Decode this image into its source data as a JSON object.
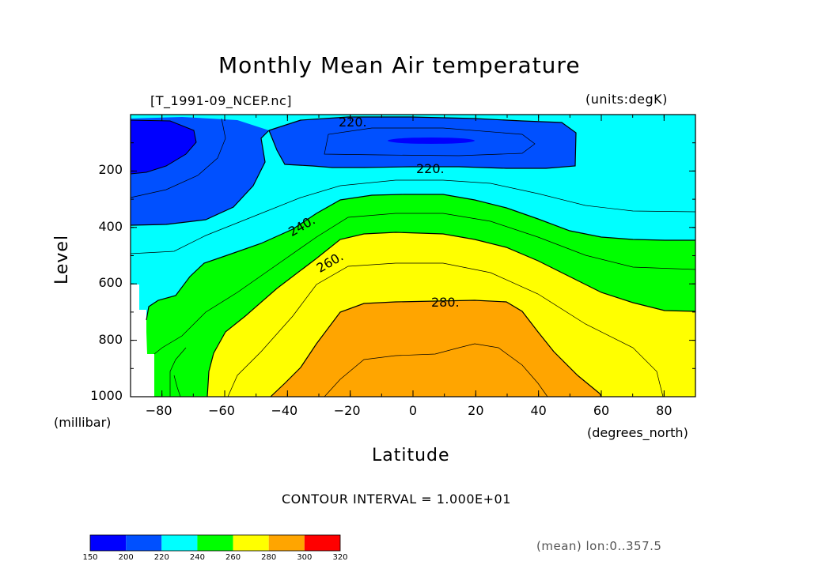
{
  "chart_data": {
    "type": "heatmap",
    "title": "Monthly Mean Air temperature",
    "file_label": "[T_1991-09_NCEP.nc]",
    "units_label": "(units:degK)",
    "xlabel": "Latitude",
    "ylabel": "Level",
    "x_units": "(degrees_north)",
    "y_units": "(millibar)",
    "xlim": [
      -90,
      90
    ],
    "ylim": [
      1000,
      0
    ],
    "x_ticks": [
      -80,
      -60,
      -40,
      -20,
      0,
      20,
      40,
      60,
      80
    ],
    "y_ticks": [
      200,
      400,
      600,
      800,
      1000
    ],
    "contour_interval_text": "CONTOUR INTERVAL = 1.000E+01",
    "contour_labels": [
      "220.",
      "220.",
      "240.",
      "260.",
      "280."
    ],
    "colorbar": {
      "levels": [
        150,
        200,
        220,
        240,
        260,
        280,
        300,
        320
      ],
      "colors": [
        "#0000ff",
        "#0050ff",
        "#00ffff",
        "#00ff00",
        "#ffff00",
        "#ffa500",
        "#ff0000"
      ]
    },
    "note": "(mean) lon:0..357.5"
  }
}
